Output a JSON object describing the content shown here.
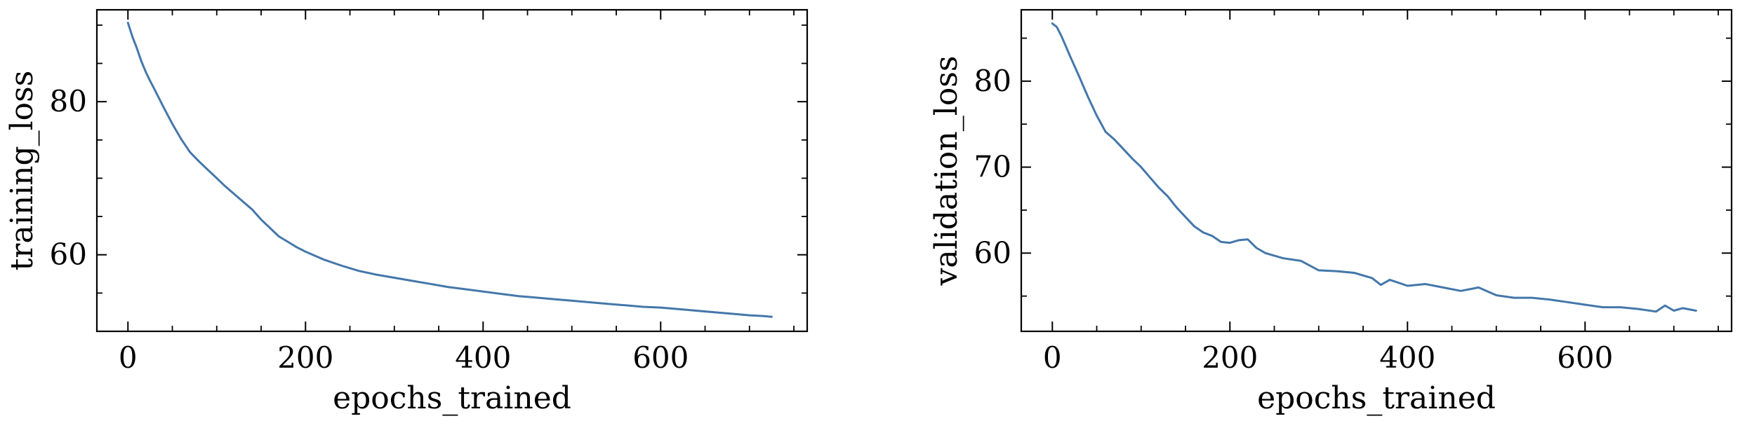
{
  "chart_data": [
    {
      "type": "line",
      "title": "",
      "xlabel": "epochs_trained",
      "ylabel": "training_loss",
      "xlim": [
        -35,
        765
      ],
      "ylim": [
        50,
        92
      ],
      "xticks": [
        0,
        200,
        400,
        600
      ],
      "yticks": [
        60,
        80
      ],
      "xtick_labels": [
        "0",
        "200",
        "400",
        "600"
      ],
      "ytick_labels": [
        "60",
        "80"
      ],
      "xminor_step": 50,
      "yminor_step": 5,
      "grid": false,
      "color": "#4477aa",
      "series": [
        {
          "x": [
            0,
            5,
            10,
            15,
            20,
            25,
            30,
            40,
            50,
            60,
            70,
            80,
            90,
            100,
            110,
            120,
            130,
            140,
            150,
            160,
            170,
            180,
            190,
            200,
            210,
            220,
            240,
            260,
            280,
            300,
            320,
            340,
            360,
            380,
            400,
            420,
            440,
            460,
            480,
            500,
            520,
            540,
            560,
            580,
            600,
            620,
            640,
            660,
            680,
            700,
            715,
            725
          ],
          "y": [
            90.3,
            88.5,
            87.0,
            85.3,
            83.9,
            82.7,
            81.6,
            79.3,
            77.1,
            75.1,
            73.4,
            72.2,
            71.1,
            70.0,
            68.9,
            67.9,
            66.9,
            65.9,
            64.6,
            63.5,
            62.4,
            61.7,
            61.0,
            60.4,
            59.9,
            59.4,
            58.6,
            57.9,
            57.4,
            57.0,
            56.6,
            56.2,
            55.8,
            55.5,
            55.2,
            54.9,
            54.6,
            54.4,
            54.2,
            54.0,
            53.8,
            53.6,
            53.4,
            53.2,
            53.1,
            52.9,
            52.7,
            52.5,
            52.3,
            52.1,
            52.0,
            51.9
          ]
        }
      ]
    },
    {
      "type": "line",
      "title": "",
      "xlabel": "epochs_trained",
      "ylabel": "validation_loss",
      "xlim": [
        -35,
        765
      ],
      "ylim": [
        50.9,
        88.3
      ],
      "xticks": [
        0,
        200,
        400,
        600
      ],
      "yticks": [
        60,
        70,
        80
      ],
      "xtick_labels": [
        "0",
        "200",
        "400",
        "600"
      ],
      "ytick_labels": [
        "60",
        "70",
        "80"
      ],
      "xminor_step": 50,
      "yminor_step": 5,
      "grid": false,
      "color": "#4477aa",
      "series": [
        {
          "x": [
            0,
            5,
            10,
            15,
            20,
            30,
            40,
            50,
            60,
            70,
            80,
            90,
            100,
            110,
            120,
            130,
            140,
            150,
            160,
            170,
            180,
            190,
            200,
            210,
            220,
            230,
            240,
            260,
            280,
            300,
            320,
            340,
            360,
            370,
            380,
            400,
            420,
            440,
            460,
            480,
            500,
            520,
            540,
            560,
            580,
            600,
            620,
            640,
            660,
            680,
            690,
            700,
            710,
            725
          ],
          "y": [
            86.7,
            86.3,
            85.3,
            84.1,
            82.9,
            80.6,
            78.2,
            76.0,
            74.1,
            73.2,
            72.1,
            71.0,
            70.0,
            68.8,
            67.6,
            66.6,
            65.3,
            64.2,
            63.1,
            62.4,
            62.0,
            61.3,
            61.2,
            61.5,
            61.6,
            60.6,
            60.0,
            59.4,
            59.1,
            58.0,
            57.9,
            57.7,
            57.1,
            56.3,
            56.9,
            56.2,
            56.4,
            56.0,
            55.6,
            56.0,
            55.1,
            54.8,
            54.8,
            54.6,
            54.3,
            54.0,
            53.7,
            53.7,
            53.5,
            53.2,
            53.9,
            53.3,
            53.6,
            53.3
          ]
        }
      ]
    }
  ]
}
